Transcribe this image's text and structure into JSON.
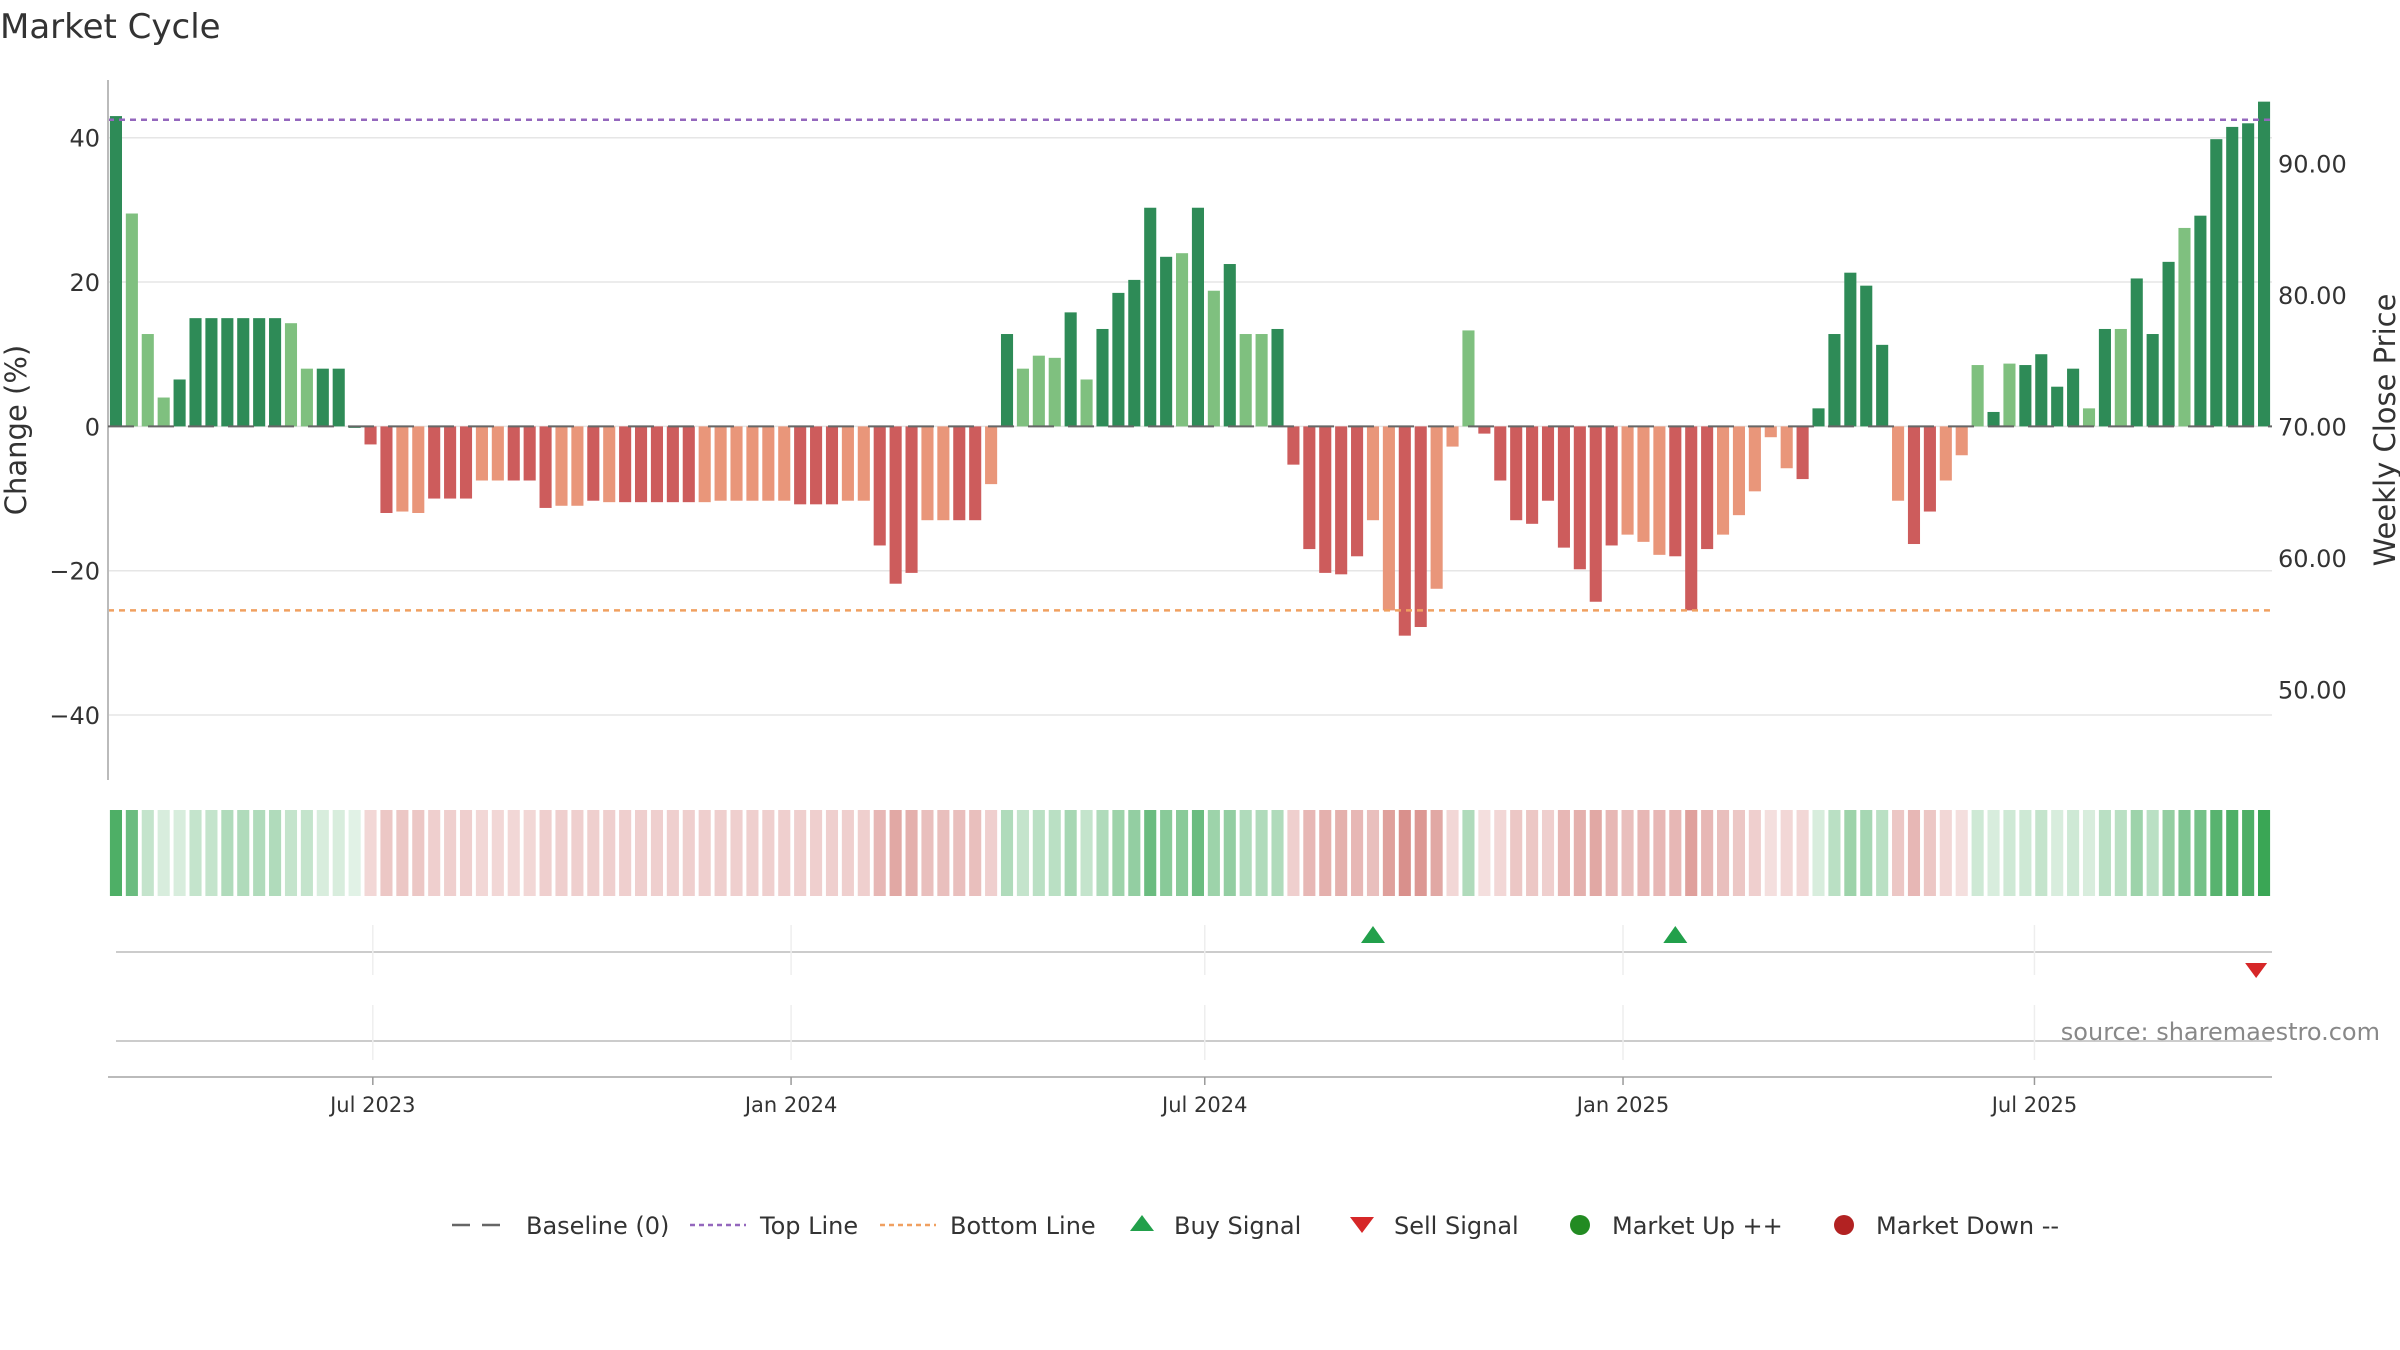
{
  "title": "Market Cycle",
  "source": "source: sharemaestro.com",
  "colors": {
    "up_strong": "#2e8b57",
    "up_light": "#7fc07f",
    "down_strong": "#cd5c5c",
    "down_light": "#e9967a",
    "top_line": "#9467bd",
    "bottom_line": "#f0a060",
    "baseline": "#666666",
    "buy": "#22a04b",
    "sell": "#d62728",
    "market_up": "#228b22",
    "market_down": "#b22222",
    "grid": "#e6e6e6"
  },
  "legend": [
    {
      "key": "baseline",
      "label": "Baseline (0)"
    },
    {
      "key": "top",
      "label": "Top Line"
    },
    {
      "key": "bottom",
      "label": "Bottom Line"
    },
    {
      "key": "buy",
      "label": "Buy Signal"
    },
    {
      "key": "sell",
      "label": "Sell Signal"
    },
    {
      "key": "mup",
      "label": "Market Up ++"
    },
    {
      "key": "mdown",
      "label": "Market Down --"
    }
  ],
  "chart_data": {
    "type": "bar",
    "ylabel": "Change (%)",
    "y2label": "Weekly Close Price",
    "ylim": [
      -49,
      48
    ],
    "yticks": [
      40,
      20,
      0,
      -20,
      -40
    ],
    "ytick_labels": [
      "40",
      "20",
      "0",
      "−20",
      "−40"
    ],
    "y2ticks": [
      90,
      80,
      70,
      60,
      50
    ],
    "y2tick_labels": [
      "90.00",
      "80.00",
      "70.00",
      "60.00",
      "50.00"
    ],
    "top_line": 42.5,
    "bottom_line": -25.5,
    "x_start": "2023-03-10",
    "xticks": [
      {
        "date": "2023-07-01",
        "label": "Jul 2023"
      },
      {
        "date": "2024-01-01",
        "label": "Jan 2024"
      },
      {
        "date": "2024-07-01",
        "label": "Jul 2024"
      },
      {
        "date": "2025-01-01",
        "label": "Jan 2025"
      },
      {
        "date": "2025-07-01",
        "label": "Jul 2025"
      }
    ],
    "values": [
      43,
      29.5,
      12.8,
      4,
      6.5,
      15,
      15,
      15,
      15,
      15,
      15,
      14.3,
      8,
      8,
      8,
      0,
      -2.5,
      -12,
      -11.8,
      -12,
      -10,
      -10,
      -10,
      -7.5,
      -7.5,
      -7.5,
      -7.5,
      -11.3,
      -11,
      -11,
      -10.3,
      -10.5,
      -10.5,
      -10.5,
      -10.5,
      -10.5,
      -10.5,
      -10.5,
      -10.3,
      -10.3,
      -10.3,
      -10.3,
      -10.3,
      -10.8,
      -10.8,
      -10.8,
      -10.3,
      -10.3,
      -16.5,
      -21.8,
      -20.3,
      -13,
      -13,
      -13,
      -13,
      -8,
      12.8,
      8,
      9.8,
      9.5,
      15.8,
      6.5,
      13.5,
      18.5,
      20.3,
      30.3,
      23.5,
      24,
      30.3,
      18.8,
      22.5,
      12.8,
      12.8,
      13.5,
      -5.3,
      -17,
      -20.3,
      -20.5,
      -18,
      -13,
      -25.5,
      -29,
      -27.8,
      -22.5,
      -2.8,
      13.3,
      -1,
      -7.5,
      -13,
      -13.5,
      -10.3,
      -16.8,
      -19.8,
      -24.3,
      -16.5,
      -15,
      -16,
      -17.8,
      -18,
      -25.5,
      -17,
      -15,
      -12.3,
      -9,
      -1.5,
      -5.8,
      -7.3,
      2.5,
      12.8,
      21.3,
      19.5,
      11.3,
      -10.3,
      -16.3,
      -11.8,
      -7.5,
      -4,
      8.5,
      2,
      8.7,
      8.5,
      10,
      5.5,
      8,
      2.5,
      13.5,
      13.5,
      20.5,
      12.8,
      22.8,
      27.5,
      29.2,
      39.8,
      41.5,
      42,
      45
    ],
    "light_indices": [
      1,
      2,
      3,
      11,
      12,
      18,
      19,
      23,
      24,
      28,
      29,
      31,
      37,
      38,
      39,
      40,
      41,
      42,
      46,
      47,
      51,
      52,
      55,
      57,
      58,
      59,
      61,
      67,
      69,
      71,
      72,
      79,
      80,
      83,
      84,
      85,
      95,
      96,
      97,
      101,
      102,
      103,
      104,
      105,
      112,
      115,
      116,
      117,
      119,
      124,
      126,
      130
    ],
    "band_strength": [
      0.9,
      0.75,
      0.3,
      0.2,
      0.2,
      0.3,
      0.3,
      0.4,
      0.4,
      0.4,
      0.4,
      0.3,
      0.3,
      0.2,
      0.2,
      0.15,
      0.25,
      0.35,
      0.35,
      0.35,
      0.3,
      0.3,
      0.3,
      0.25,
      0.25,
      0.25,
      0.25,
      0.3,
      0.3,
      0.3,
      0.3,
      0.3,
      0.3,
      0.3,
      0.3,
      0.3,
      0.3,
      0.3,
      0.3,
      0.3,
      0.3,
      0.3,
      0.3,
      0.3,
      0.3,
      0.3,
      0.3,
      0.3,
      0.45,
      0.55,
      0.5,
      0.4,
      0.4,
      0.4,
      0.4,
      0.3,
      0.4,
      0.3,
      0.35,
      0.35,
      0.45,
      0.3,
      0.4,
      0.5,
      0.55,
      0.75,
      0.6,
      0.6,
      0.75,
      0.5,
      0.55,
      0.4,
      0.4,
      0.4,
      0.3,
      0.45,
      0.5,
      0.5,
      0.45,
      0.4,
      0.6,
      0.7,
      0.65,
      0.55,
      0.25,
      0.4,
      0.2,
      0.25,
      0.35,
      0.35,
      0.3,
      0.45,
      0.5,
      0.55,
      0.45,
      0.4,
      0.45,
      0.45,
      0.45,
      0.6,
      0.45,
      0.4,
      0.35,
      0.3,
      0.2,
      0.25,
      0.25,
      0.2,
      0.35,
      0.5,
      0.45,
      0.35,
      0.35,
      0.45,
      0.35,
      0.25,
      0.2,
      0.25,
      0.2,
      0.25,
      0.25,
      0.3,
      0.2,
      0.25,
      0.2,
      0.35,
      0.35,
      0.5,
      0.35,
      0.55,
      0.65,
      0.7,
      0.85,
      0.9,
      0.9,
      1.0
    ],
    "buy_signals": [
      79,
      98
    ],
    "sell_signals": [
      134
    ]
  }
}
